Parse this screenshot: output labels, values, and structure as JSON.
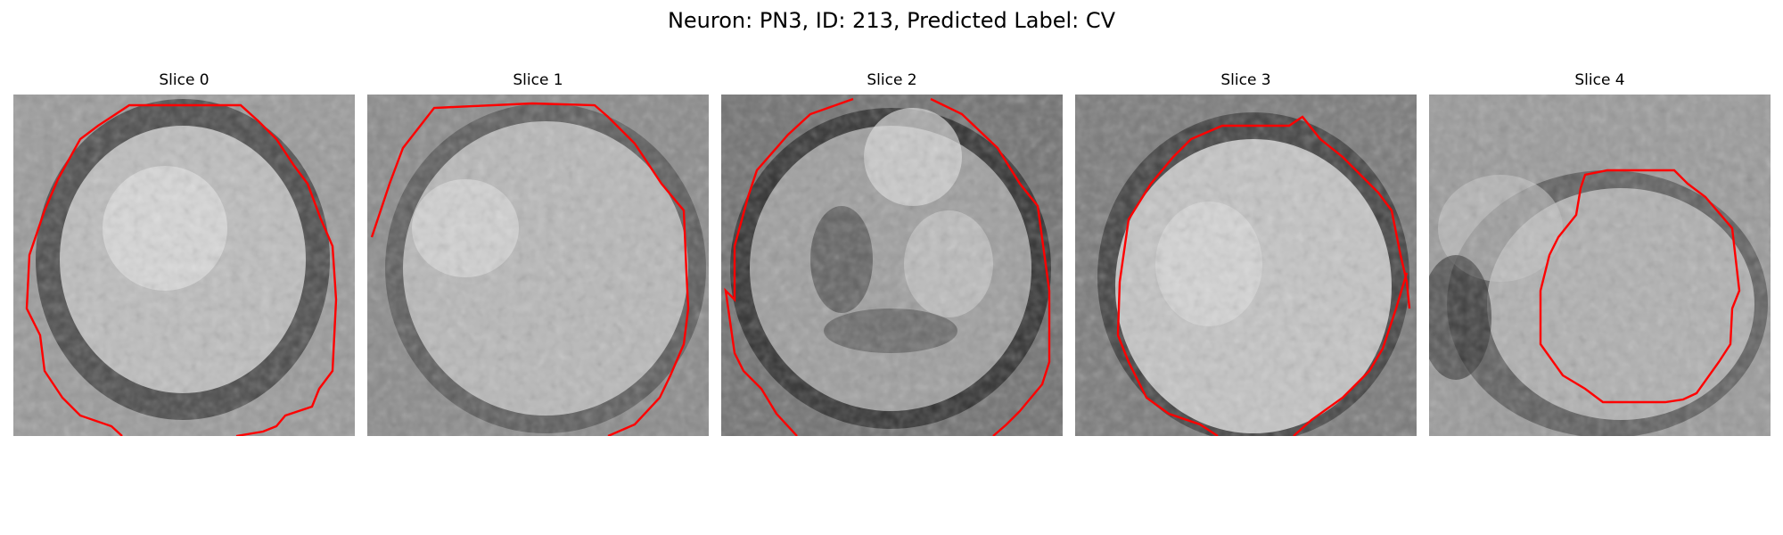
{
  "figure": {
    "title": "Neuron: PN3, ID: 213, Predicted Label: CV"
  },
  "panels": [
    {
      "title": "Slice 0"
    },
    {
      "title": "Slice 1"
    },
    {
      "title": "Slice 2"
    },
    {
      "title": "Slice 3"
    },
    {
      "title": "Slice 4"
    }
  ],
  "colors": {
    "contour": "#ff0000",
    "colormap": "grayscale"
  }
}
